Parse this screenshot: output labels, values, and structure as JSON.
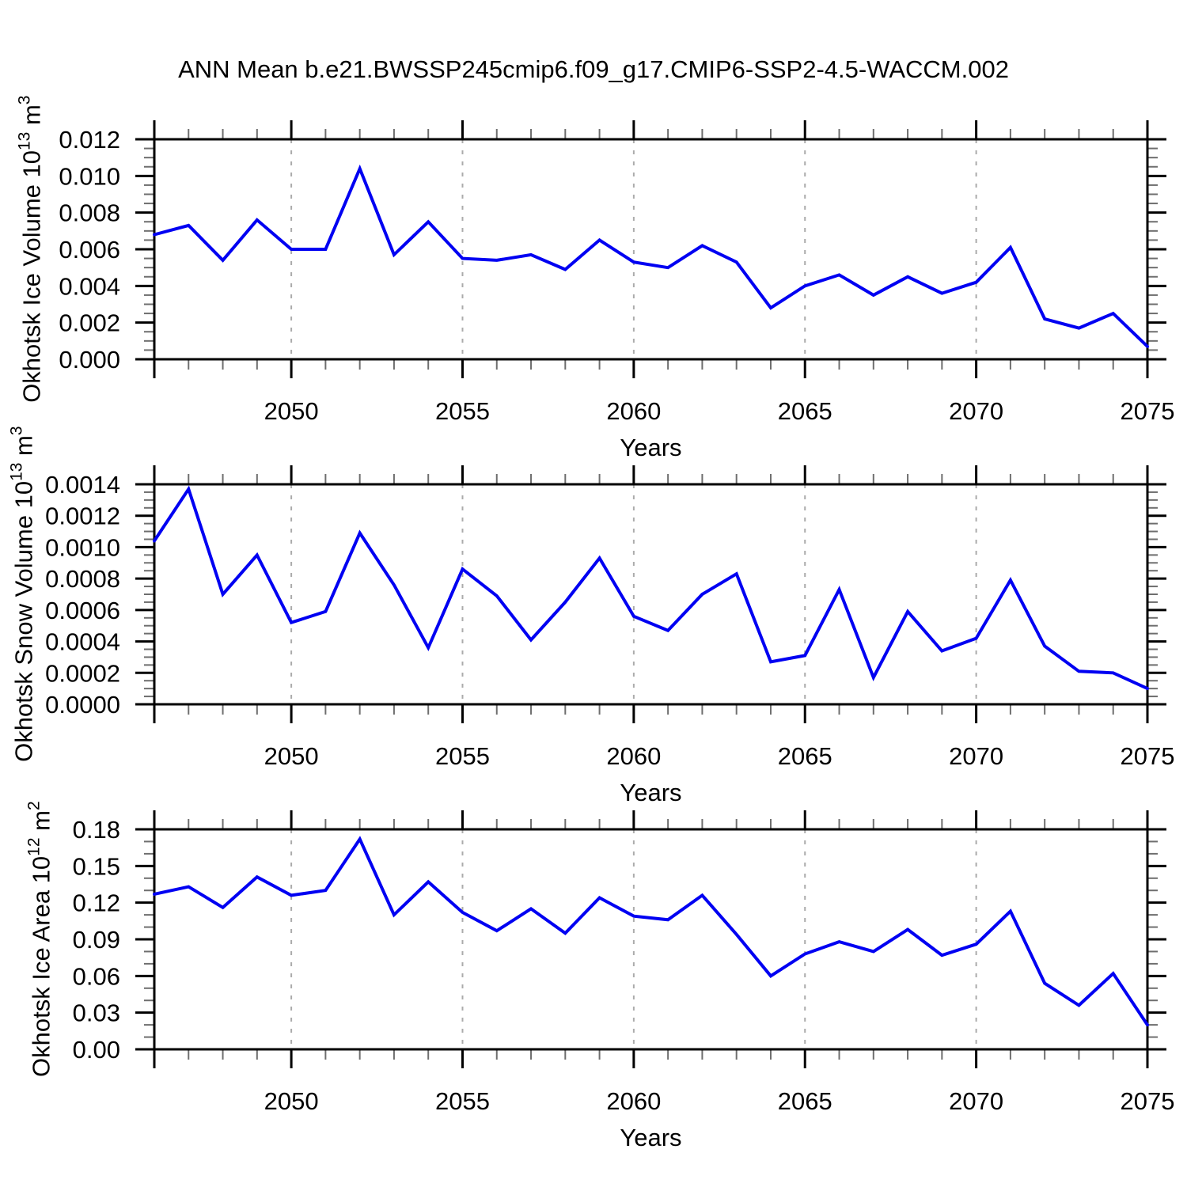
{
  "title": "ANN Mean b.e21.BWSSP245cmip6.f09_g17.CMIP6-SSP2-4.5-WACCM.002",
  "colors": {
    "line": "#0000f2",
    "grid": "#ababab",
    "axis": "#000000",
    "minor_tick": "#6e6e6e"
  },
  "chart_data": [
    {
      "id": "okhotsk-ice-volume",
      "type": "line",
      "ylabel_parts": [
        {
          "t": "Okhotsk Ice Volume 10"
        },
        {
          "t": "13",
          "sup": true
        },
        {
          "t": " m"
        },
        {
          "t": "3",
          "sup": true
        }
      ],
      "xlabel": "Years",
      "x": [
        2046,
        2047,
        2048,
        2049,
        2050,
        2051,
        2052,
        2053,
        2054,
        2055,
        2056,
        2057,
        2058,
        2059,
        2060,
        2061,
        2062,
        2063,
        2064,
        2065,
        2066,
        2067,
        2068,
        2069,
        2070,
        2071,
        2072,
        2073,
        2074,
        2075
      ],
      "values": [
        0.0068,
        0.0073,
        0.0054,
        0.0076,
        0.006,
        0.006,
        0.0104,
        0.0057,
        0.0075,
        0.0055,
        0.0054,
        0.0057,
        0.0049,
        0.0065,
        0.0053,
        0.005,
        0.0062,
        0.0053,
        0.0028,
        0.004,
        0.0046,
        0.0035,
        0.0045,
        0.0036,
        0.0042,
        0.0061,
        0.0022,
        0.0017,
        0.0025,
        0.0007
      ],
      "xlim": [
        2046,
        2075
      ],
      "ylim": [
        0,
        0.012
      ],
      "ytick_step": 0.002,
      "yminor_step": 0.0005,
      "ytick_labels": [
        "0.000",
        "0.002",
        "0.004",
        "0.006",
        "0.008",
        "0.010",
        "0.012"
      ],
      "xticks": [
        2050,
        2055,
        2060,
        2065,
        2070,
        2075
      ],
      "xtick_labels": [
        "2050",
        "2055",
        "2060",
        "2065",
        "2070",
        "2075"
      ],
      "gridlines": [
        2050,
        2055,
        2060,
        2065,
        2070
      ],
      "grid_on": "dashed-vertical-only"
    },
    {
      "id": "okhotsk-snow-volume",
      "type": "line",
      "ylabel_parts": [
        {
          "t": "Okhotsk Snow Volume 10"
        },
        {
          "t": "13",
          "sup": true
        },
        {
          "t": " m"
        },
        {
          "t": "3",
          "sup": true
        }
      ],
      "xlabel": "Years",
      "x": [
        2046,
        2047,
        2048,
        2049,
        2050,
        2051,
        2052,
        2053,
        2054,
        2055,
        2056,
        2057,
        2058,
        2059,
        2060,
        2061,
        2062,
        2063,
        2064,
        2065,
        2066,
        2067,
        2068,
        2069,
        2070,
        2071,
        2072,
        2073,
        2074,
        2075
      ],
      "values": [
        0.00104,
        0.00137,
        0.0007,
        0.00095,
        0.00052,
        0.00059,
        0.00109,
        0.00076,
        0.00036,
        0.00086,
        0.00069,
        0.00041,
        0.00065,
        0.00093,
        0.00056,
        0.00047,
        0.0007,
        0.00083,
        0.00027,
        0.00031,
        0.00073,
        0.00017,
        0.00059,
        0.00034,
        0.00042,
        0.00079,
        0.00037,
        0.00021,
        0.0002,
        0.0001
      ],
      "xlim": [
        2046,
        2075
      ],
      "ylim": [
        0,
        0.0014
      ],
      "ytick_step": 0.0002,
      "yminor_step": 5e-05,
      "ytick_labels": [
        "0.0000",
        "0.0002",
        "0.0004",
        "0.0006",
        "0.0008",
        "0.0010",
        "0.0012",
        "0.0014"
      ],
      "xticks": [
        2050,
        2055,
        2060,
        2065,
        2070,
        2075
      ],
      "xtick_labels": [
        "2050",
        "2055",
        "2060",
        "2065",
        "2070",
        "2075"
      ],
      "gridlines": [
        2050,
        2055,
        2060,
        2065,
        2070
      ],
      "grid_on": "dashed-vertical-only"
    },
    {
      "id": "okhotsk-ice-area",
      "type": "line",
      "ylabel_parts": [
        {
          "t": "Okhotsk Ice Area 10"
        },
        {
          "t": "12",
          "sup": true
        },
        {
          "t": " m"
        },
        {
          "t": "2",
          "sup": true
        }
      ],
      "xlabel": "Years",
      "x": [
        2046,
        2047,
        2048,
        2049,
        2050,
        2051,
        2052,
        2053,
        2054,
        2055,
        2056,
        2057,
        2058,
        2059,
        2060,
        2061,
        2062,
        2063,
        2064,
        2065,
        2066,
        2067,
        2068,
        2069,
        2070,
        2071,
        2072,
        2073,
        2074,
        2075
      ],
      "values": [
        0.127,
        0.133,
        0.116,
        0.141,
        0.126,
        0.13,
        0.172,
        0.11,
        0.137,
        0.112,
        0.097,
        0.115,
        0.095,
        0.124,
        0.109,
        0.106,
        0.126,
        0.094,
        0.06,
        0.078,
        0.088,
        0.08,
        0.098,
        0.077,
        0.086,
        0.113,
        0.054,
        0.036,
        0.062,
        0.02
      ],
      "xlim": [
        2046,
        2075
      ],
      "ylim": [
        0,
        0.18
      ],
      "ytick_step": 0.03,
      "yminor_step": 0.01,
      "ytick_labels": [
        "0.00",
        "0.03",
        "0.06",
        "0.09",
        "0.12",
        "0.15",
        "0.18"
      ],
      "xticks": [
        2050,
        2055,
        2060,
        2065,
        2070,
        2075
      ],
      "xtick_labels": [
        "2050",
        "2055",
        "2060",
        "2065",
        "2070",
        "2075"
      ],
      "gridlines": [
        2050,
        2055,
        2060,
        2065,
        2070
      ],
      "grid_on": "dashed-vertical-only"
    }
  ]
}
